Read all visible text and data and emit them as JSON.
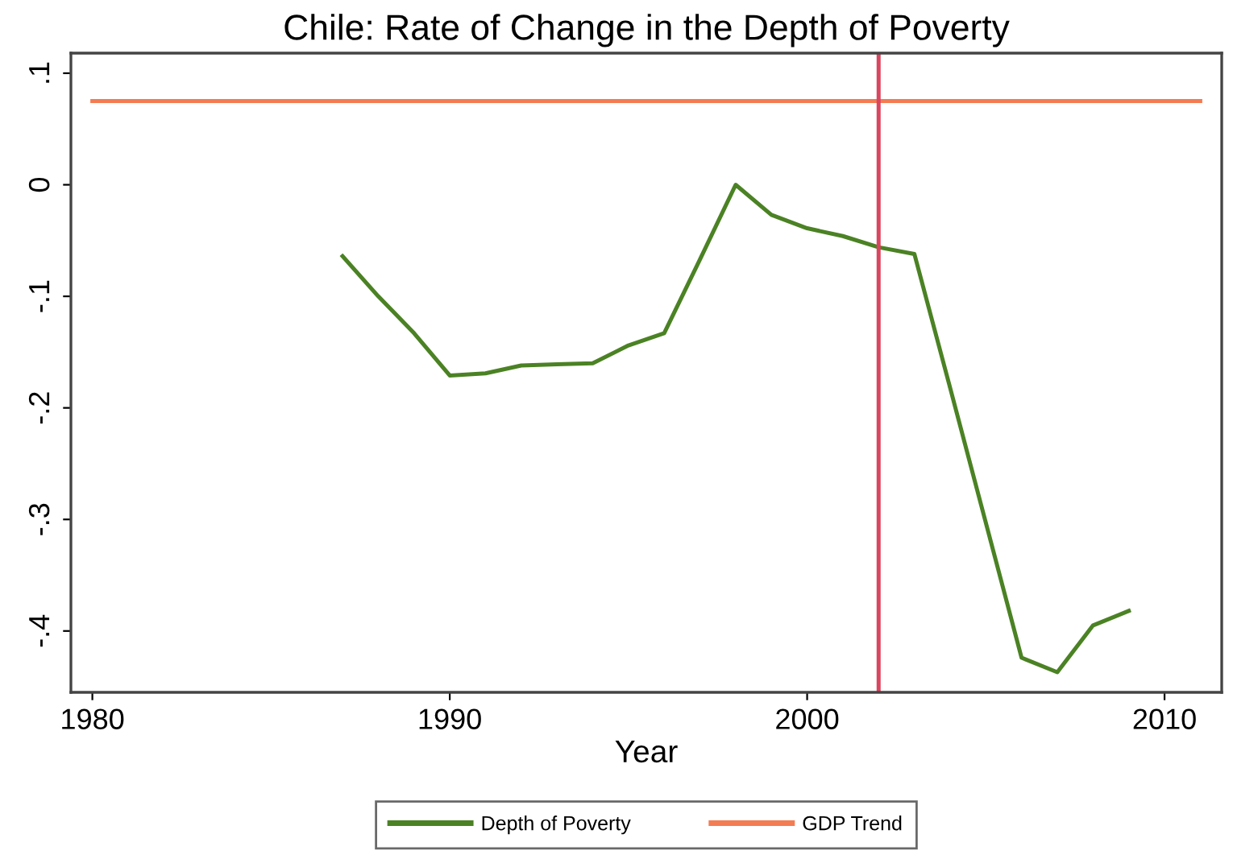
{
  "chart_data": {
    "type": "line",
    "title": "Chile: Rate of Change in the Depth of Poverty",
    "xlabel": "Year",
    "series": [
      {
        "name": "Depth of Poverty",
        "color": "#4b8224",
        "x": [
          1987,
          1988,
          1989,
          1990,
          1991,
          1992,
          1993,
          1994,
          1995,
          1996,
          1997,
          1998,
          1999,
          2000,
          2001,
          2002,
          2003,
          2004,
          2005,
          2006,
          2007,
          2008,
          2009
        ],
        "values": [
          -0.064,
          -0.1,
          -0.133,
          -0.171,
          -0.169,
          -0.162,
          -0.161,
          -0.16,
          -0.144,
          -0.133,
          -0.067,
          0.0,
          -0.027,
          -0.039,
          -0.046,
          -0.056,
          -0.062,
          -0.182,
          -0.303,
          -0.424,
          -0.437,
          -0.395,
          -0.382
        ]
      },
      {
        "name": "GDP Trend",
        "color": "#f47c52",
        "x": [
          1980,
          2011
        ],
        "values": [
          0.075,
          0.075
        ]
      }
    ],
    "ref_lines": [
      {
        "axis": "x",
        "value": 2002,
        "label": null,
        "color": "#d9455f"
      }
    ],
    "xlim": [
      1979.4,
      2011.6
    ],
    "xticks": [
      1980,
      1990,
      2000,
      2010
    ],
    "ylim": [
      -0.455,
      0.118
    ],
    "yticks": [
      {
        "value": 0.1,
        "label": ".1"
      },
      {
        "value": 0,
        "label": "0"
      },
      {
        "value": -0.1,
        "label": "-.1"
      },
      {
        "value": -0.2,
        "label": "-.2"
      },
      {
        "value": -0.3,
        "label": "-.3"
      },
      {
        "value": -0.4,
        "label": "-.4"
      }
    ],
    "grid": false,
    "legend": "bottom",
    "marker": "none",
    "line_style": "solid"
  }
}
